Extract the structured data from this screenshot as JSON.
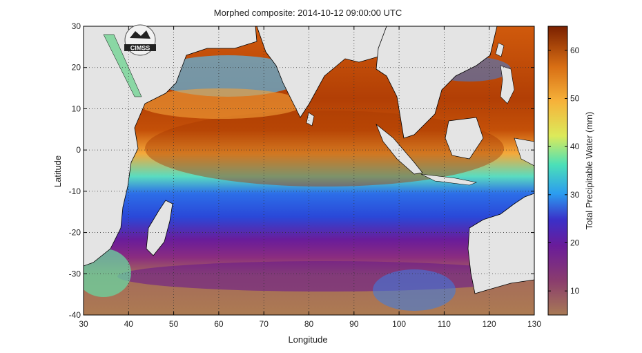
{
  "title": "Morphed composite: 2014-10-12 09:00:00 UTC",
  "xlabel": "Longitude",
  "ylabel": "Latitude",
  "colorbar_label": "Total Precipitable Water (mm)",
  "logo_text": "CIMSS",
  "logo_icon": "cimss-satellite-logo",
  "map": {
    "lon_range": [
      30,
      130
    ],
    "lat_range": [
      -40,
      30
    ],
    "lon_ticks": [
      "30",
      "40",
      "50",
      "60",
      "70",
      "80",
      "90",
      "100",
      "110",
      "120",
      "130"
    ],
    "lat_ticks": [
      "30",
      "20",
      "10",
      "0",
      "-10",
      "-20",
      "-30",
      "-40"
    ],
    "grid": "dotted",
    "land_color": "#e4e4e4",
    "border_color": "#000000"
  },
  "colorbar": {
    "range": [
      5,
      65
    ],
    "ticks": [
      "10",
      "20",
      "30",
      "40",
      "50",
      "60"
    ],
    "colors": [
      "#a87a55",
      "#8a3c6e",
      "#6a1c9a",
      "#2c48d8",
      "#2b9cf0",
      "#4be0b8",
      "#dcea5a",
      "#f6b23a",
      "#d86e14",
      "#8a2400"
    ]
  }
}
